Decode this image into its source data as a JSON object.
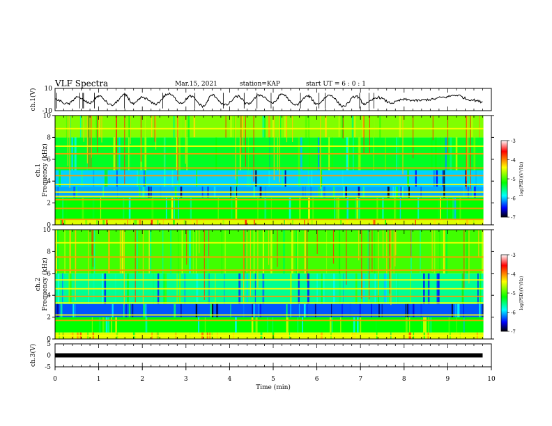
{
  "header": {
    "title": "VLF Spectra",
    "date": "Mar.15, 2021",
    "station": "station=KAP",
    "start": "start UT =  6 : 0 : 1"
  },
  "colorbar": {
    "label": "log(PSD)(V²/Hz)",
    "ticks": [
      -3,
      -4,
      -5,
      -6,
      -7
    ],
    "colors": [
      "#ffffff",
      "#ff0000",
      "#ffff00",
      "#00ff00",
      "#00ffff",
      "#0000ff",
      "#000000"
    ]
  },
  "chart_data": [
    {
      "type": "line",
      "ylabel": "ch.1(V)",
      "ylim": [
        -10,
        10
      ],
      "yticks": [
        10,
        -10
      ],
      "xlim": [
        0,
        10
      ],
      "description_values_note": "",
      "x": [
        0,
        0.3,
        0.5,
        0.8,
        1.0,
        1.3,
        1.6,
        1.8,
        2.0,
        2.3,
        2.6,
        2.9,
        3.1,
        3.4,
        3.6,
        3.9,
        4.2,
        4.4,
        4.7,
        5.0,
        5.2,
        5.5,
        5.8,
        6.0,
        6.3,
        6.6,
        6.9,
        7.1,
        7.4,
        7.7,
        8.0,
        8.3,
        8.6,
        8.9,
        9.2,
        9.5,
        9.8
      ],
      "y": [
        0,
        -4,
        2,
        -3,
        3,
        -5,
        4,
        -4,
        2,
        -4,
        5,
        -3,
        3,
        -6,
        4,
        -5,
        3,
        -4,
        4,
        -3,
        5,
        -5,
        3,
        -4,
        4,
        -6,
        3,
        -4,
        2,
        -3,
        0,
        -1,
        0,
        2,
        4,
        0,
        -2
      ]
    },
    {
      "type": "heatmap",
      "ylabel": "ch.1\nFrequency (kHz)",
      "ylim": [
        0,
        10
      ],
      "yticks": [
        0,
        2,
        4,
        6,
        8,
        10
      ],
      "xlim": [
        0,
        10
      ],
      "zlim": [
        -7,
        -3
      ],
      "bands": [
        {
          "from": 0,
          "to": 0.5,
          "level": -4.5
        },
        {
          "from": 0.5,
          "to": 2.5,
          "level": -5.2
        },
        {
          "from": 2.5,
          "to": 3.5,
          "level": -6.1
        },
        {
          "from": 3.5,
          "to": 5.0,
          "level": -6.0
        },
        {
          "from": 5.0,
          "to": 8.0,
          "level": -5.3
        },
        {
          "from": 8.0,
          "to": 10,
          "level": -4.8
        }
      ],
      "lines_khz": [
        0.5,
        1.5,
        2.3,
        2.6,
        3.0,
        3.7,
        4.5,
        5.2,
        6.5,
        7.2,
        8.8
      ]
    },
    {
      "type": "heatmap",
      "ylabel": "ch.2\nFrequency (kHz)",
      "ylim": [
        0,
        10
      ],
      "yticks": [
        0,
        2,
        4,
        6,
        8,
        10
      ],
      "xlim": [
        0,
        10
      ],
      "zlim": [
        -7,
        -3
      ],
      "bands": [
        {
          "from": 0,
          "to": 0.6,
          "level": -4.5
        },
        {
          "from": 0.6,
          "to": 2.0,
          "level": -5.2
        },
        {
          "from": 2.0,
          "to": 3.2,
          "level": -6.3
        },
        {
          "from": 3.2,
          "to": 6.0,
          "level": -5.6
        },
        {
          "from": 6.0,
          "to": 10,
          "level": -5.0
        }
      ],
      "lines_khz": [
        0.3,
        1.7,
        2.2,
        3.3,
        3.9,
        4.6,
        5.4,
        6.3,
        7.5,
        8.8
      ]
    },
    {
      "type": "line",
      "ylabel": "ch.3(V)",
      "ylim": [
        -5,
        5
      ],
      "yticks": [
        5,
        0,
        -5
      ],
      "xlim": [
        0,
        10
      ],
      "xlabel": "Time (min)",
      "xticks": [
        0,
        1,
        2,
        3,
        4,
        5,
        6,
        7,
        8,
        9,
        10
      ],
      "x": [
        0,
        9.8
      ],
      "y": [
        0,
        0
      ]
    }
  ]
}
